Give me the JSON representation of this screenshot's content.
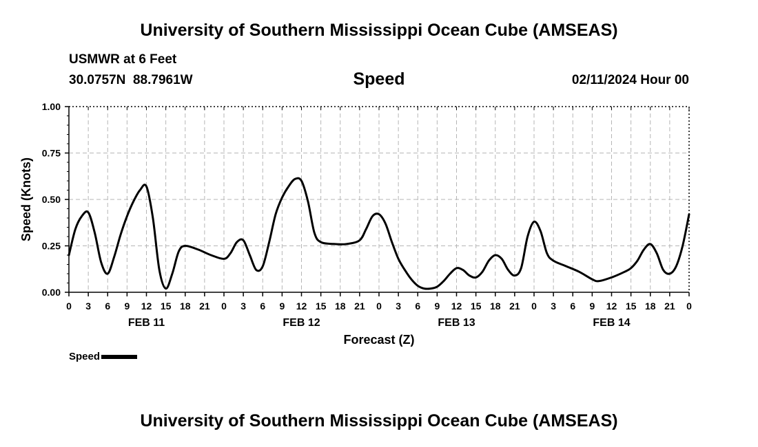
{
  "header": {
    "title": "University of Southern Mississippi Ocean Cube (AMSEAS)",
    "station": "USMWR at 6 Feet",
    "latitude": "30.0757N",
    "longitude": "88.7961W",
    "chart_title": "Speed",
    "run_date": "02/11/2024 Hour 00"
  },
  "footer": {
    "title": "University of Southern Mississippi Ocean Cube (AMSEAS)"
  },
  "legend": {
    "label": "Speed"
  },
  "chart_data": {
    "type": "line",
    "title": "Speed",
    "xlabel": "Forecast (Z)",
    "ylabel": "Speed (Knots)",
    "xlim": [
      0,
      96
    ],
    "ylim": [
      0,
      1.0
    ],
    "grid": true,
    "yticks": [
      {
        "value": 0.0,
        "label": "0.00"
      },
      {
        "value": 0.25,
        "label": "0.25"
      },
      {
        "value": 0.5,
        "label": "0.50"
      },
      {
        "value": 0.75,
        "label": "0.75"
      },
      {
        "value": 1.0,
        "label": "1.00"
      }
    ],
    "xticks": [
      {
        "value": 0,
        "label": "0"
      },
      {
        "value": 3,
        "label": "3"
      },
      {
        "value": 6,
        "label": "6"
      },
      {
        "value": 9,
        "label": "9"
      },
      {
        "value": 12,
        "label": "12"
      },
      {
        "value": 15,
        "label": "15"
      },
      {
        "value": 18,
        "label": "18"
      },
      {
        "value": 21,
        "label": "21"
      },
      {
        "value": 24,
        "label": "0"
      },
      {
        "value": 27,
        "label": "3"
      },
      {
        "value": 30,
        "label": "6"
      },
      {
        "value": 33,
        "label": "9"
      },
      {
        "value": 36,
        "label": "12"
      },
      {
        "value": 39,
        "label": "15"
      },
      {
        "value": 42,
        "label": "18"
      },
      {
        "value": 45,
        "label": "21"
      },
      {
        "value": 48,
        "label": "0"
      },
      {
        "value": 51,
        "label": "3"
      },
      {
        "value": 54,
        "label": "6"
      },
      {
        "value": 57,
        "label": "9"
      },
      {
        "value": 60,
        "label": "12"
      },
      {
        "value": 63,
        "label": "15"
      },
      {
        "value": 66,
        "label": "18"
      },
      {
        "value": 69,
        "label": "21"
      },
      {
        "value": 72,
        "label": "0"
      },
      {
        "value": 75,
        "label": "3"
      },
      {
        "value": 78,
        "label": "6"
      },
      {
        "value": 81,
        "label": "9"
      },
      {
        "value": 84,
        "label": "12"
      },
      {
        "value": 87,
        "label": "15"
      },
      {
        "value": 90,
        "label": "18"
      },
      {
        "value": 93,
        "label": "21"
      },
      {
        "value": 96,
        "label": "0"
      }
    ],
    "day_labels": [
      {
        "value": 12,
        "label": "FEB 11"
      },
      {
        "value": 36,
        "label": "FEB 12"
      },
      {
        "value": 60,
        "label": "FEB 13"
      },
      {
        "value": 84,
        "label": "FEB 14"
      }
    ],
    "series": [
      {
        "name": "Speed",
        "color": "#000000",
        "points": [
          [
            0,
            0.2
          ],
          [
            1,
            0.34
          ],
          [
            2,
            0.41
          ],
          [
            3,
            0.43
          ],
          [
            4,
            0.32
          ],
          [
            5,
            0.16
          ],
          [
            6,
            0.1
          ],
          [
            7,
            0.19
          ],
          [
            8,
            0.31
          ],
          [
            9,
            0.41
          ],
          [
            10,
            0.49
          ],
          [
            11,
            0.55
          ],
          [
            12,
            0.57
          ],
          [
            13,
            0.4
          ],
          [
            14,
            0.12
          ],
          [
            15,
            0.02
          ],
          [
            16,
            0.1
          ],
          [
            17,
            0.22
          ],
          [
            18,
            0.25
          ],
          [
            20,
            0.23
          ],
          [
            22,
            0.2
          ],
          [
            24,
            0.18
          ],
          [
            25,
            0.21
          ],
          [
            26,
            0.27
          ],
          [
            27,
            0.28
          ],
          [
            28,
            0.2
          ],
          [
            29,
            0.12
          ],
          [
            30,
            0.14
          ],
          [
            31,
            0.27
          ],
          [
            32,
            0.42
          ],
          [
            33,
            0.51
          ],
          [
            34,
            0.57
          ],
          [
            35,
            0.61
          ],
          [
            36,
            0.6
          ],
          [
            37,
            0.49
          ],
          [
            38,
            0.32
          ],
          [
            39,
            0.27
          ],
          [
            41,
            0.26
          ],
          [
            43,
            0.26
          ],
          [
            45,
            0.28
          ],
          [
            46,
            0.34
          ],
          [
            47,
            0.41
          ],
          [
            48,
            0.42
          ],
          [
            49,
            0.37
          ],
          [
            50,
            0.27
          ],
          [
            51,
            0.18
          ],
          [
            52,
            0.12
          ],
          [
            53,
            0.07
          ],
          [
            54,
            0.035
          ],
          [
            55,
            0.02
          ],
          [
            56,
            0.02
          ],
          [
            57,
            0.03
          ],
          [
            58,
            0.06
          ],
          [
            59,
            0.1
          ],
          [
            60,
            0.13
          ],
          [
            61,
            0.12
          ],
          [
            62,
            0.09
          ],
          [
            63,
            0.08
          ],
          [
            64,
            0.11
          ],
          [
            65,
            0.17
          ],
          [
            66,
            0.2
          ],
          [
            67,
            0.18
          ],
          [
            68,
            0.12
          ],
          [
            69,
            0.09
          ],
          [
            70,
            0.13
          ],
          [
            71,
            0.3
          ],
          [
            72,
            0.38
          ],
          [
            73,
            0.33
          ],
          [
            74,
            0.21
          ],
          [
            75,
            0.17
          ],
          [
            77,
            0.14
          ],
          [
            79,
            0.11
          ],
          [
            81,
            0.07
          ],
          [
            82,
            0.06
          ],
          [
            84,
            0.08
          ],
          [
            86,
            0.11
          ],
          [
            87,
            0.13
          ],
          [
            88,
            0.17
          ],
          [
            89,
            0.23
          ],
          [
            90,
            0.26
          ],
          [
            91,
            0.21
          ],
          [
            92,
            0.12
          ],
          [
            93,
            0.1
          ],
          [
            94,
            0.14
          ],
          [
            95,
            0.25
          ],
          [
            96,
            0.42
          ]
        ]
      }
    ]
  }
}
